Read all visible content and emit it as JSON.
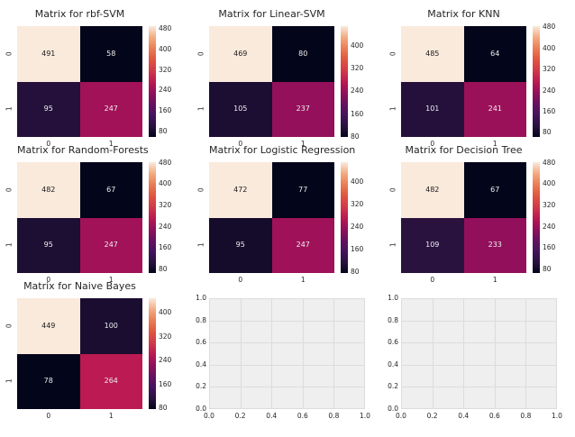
{
  "figure": {
    "background": "#ffffff"
  },
  "palette": {
    "colormap_name": "rocket",
    "colormap_stops": [
      [
        0.0,
        "#03051A"
      ],
      [
        0.1,
        "#2A123F"
      ],
      [
        0.2,
        "#46125E"
      ],
      [
        0.3,
        "#671161"
      ],
      [
        0.4,
        "#92105B"
      ],
      [
        0.45,
        "#A81357"
      ],
      [
        0.5,
        "#BC1A52"
      ],
      [
        0.6,
        "#D23A47"
      ],
      [
        0.7,
        "#E05641"
      ],
      [
        0.8,
        "#EA7E55"
      ],
      [
        0.9,
        "#F2AC83"
      ],
      [
        1.0,
        "#FAEADC"
      ]
    ],
    "annotation_light": "#EFEFEF",
    "annotation_dark": "#1A1A1A",
    "tick_color": "#262626",
    "title_color": "#262626",
    "empty_plot_bg": "#EFEFEF",
    "empty_plot_grid": "#DCDCDC"
  },
  "chart_data": [
    {
      "type": "heatmap",
      "title": "Matrix for rbf-SVM",
      "grid": {
        "row": 0,
        "col": 0
      },
      "x_tick_labels": [
        "0",
        "1"
      ],
      "y_tick_labels": [
        "0",
        "1"
      ],
      "values": [
        [
          491,
          58
        ],
        [
          95,
          247
        ]
      ],
      "colorbar_ticks": [
        80,
        160,
        240,
        320,
        400,
        480
      ]
    },
    {
      "type": "heatmap",
      "title": "Matrix for Linear-SVM",
      "grid": {
        "row": 0,
        "col": 1
      },
      "x_tick_labels": [
        "0",
        "1"
      ],
      "y_tick_labels": [
        "0",
        "1"
      ],
      "values": [
        [
          469,
          80
        ],
        [
          105,
          237
        ]
      ],
      "colorbar_ticks": [
        80,
        160,
        240,
        320,
        400
      ]
    },
    {
      "type": "heatmap",
      "title": "Matrix for KNN",
      "grid": {
        "row": 0,
        "col": 2
      },
      "x_tick_labels": [
        "0",
        "1"
      ],
      "y_tick_labels": [
        "0",
        "1"
      ],
      "values": [
        [
          485,
          64
        ],
        [
          101,
          241
        ]
      ],
      "colorbar_ticks": [
        80,
        160,
        240,
        320,
        400,
        480
      ]
    },
    {
      "type": "heatmap",
      "title": "Matrix for Random-Forests",
      "grid": {
        "row": 1,
        "col": 0
      },
      "x_tick_labels": [
        "0",
        "1"
      ],
      "y_tick_labels": [
        "0",
        "1"
      ],
      "values": [
        [
          482,
          67
        ],
        [
          95,
          247
        ]
      ],
      "colorbar_ticks": [
        80,
        160,
        240,
        320,
        400,
        480
      ]
    },
    {
      "type": "heatmap",
      "title": "Matrix for Logistic Regression",
      "grid": {
        "row": 1,
        "col": 1
      },
      "x_tick_labels": [
        "0",
        "1"
      ],
      "y_tick_labels": [
        "0",
        "1"
      ],
      "values": [
        [
          472,
          77
        ],
        [
          95,
          247
        ]
      ],
      "colorbar_ticks": [
        80,
        160,
        240,
        320,
        400
      ]
    },
    {
      "type": "heatmap",
      "title": "Matrix for Decision Tree",
      "grid": {
        "row": 1,
        "col": 2
      },
      "x_tick_labels": [
        "0",
        "1"
      ],
      "y_tick_labels": [
        "0",
        "1"
      ],
      "values": [
        [
          482,
          67
        ],
        [
          109,
          233
        ]
      ],
      "colorbar_ticks": [
        80,
        160,
        240,
        320,
        400,
        480
      ]
    },
    {
      "type": "heatmap",
      "title": "Matrix for Naive Bayes",
      "grid": {
        "row": 2,
        "col": 0
      },
      "x_tick_labels": [
        "0",
        "1"
      ],
      "y_tick_labels": [
        "0",
        "1"
      ],
      "values": [
        [
          449,
          100
        ],
        [
          78,
          264
        ]
      ],
      "colorbar_ticks": [
        80,
        160,
        240,
        320,
        400
      ]
    },
    {
      "type": "empty",
      "grid": {
        "row": 2,
        "col": 1
      },
      "xlim": [
        0.0,
        1.0
      ],
      "ylim": [
        0.0,
        1.0
      ],
      "grid_on": true,
      "x_tick_labels": [
        "0.0",
        "0.2",
        "0.4",
        "0.6",
        "0.8",
        "1.0"
      ],
      "y_tick_labels": [
        "0.0",
        "0.2",
        "0.4",
        "0.6",
        "0.8",
        "1.0"
      ]
    },
    {
      "type": "empty",
      "grid": {
        "row": 2,
        "col": 2
      },
      "xlim": [
        0.0,
        1.0
      ],
      "ylim": [
        0.0,
        1.0
      ],
      "grid_on": true,
      "x_tick_labels": [
        "0.0",
        "0.2",
        "0.4",
        "0.6",
        "0.8",
        "1.0"
      ],
      "y_tick_labels": [
        "0.0",
        "0.2",
        "0.4",
        "0.6",
        "0.8",
        "1.0"
      ]
    }
  ]
}
